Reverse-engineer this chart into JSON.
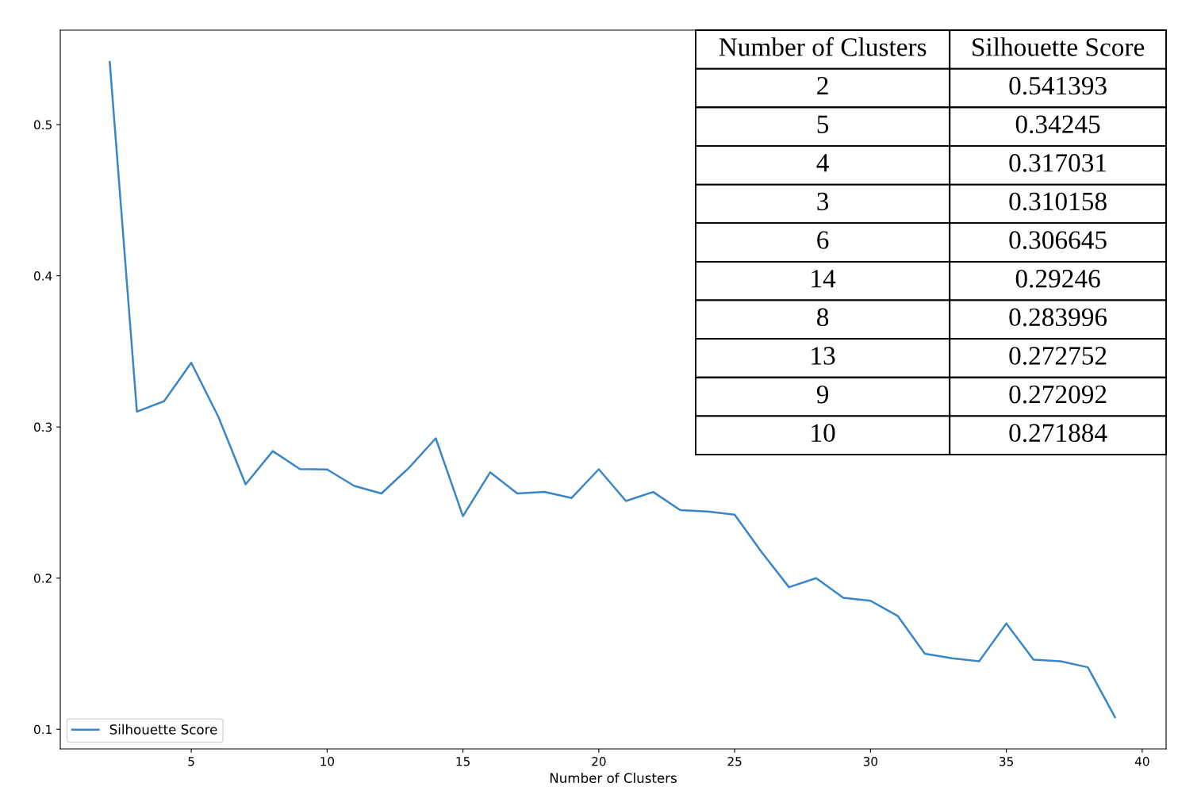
{
  "chart_data": {
    "type": "line",
    "xlabel": "Number of Clusters",
    "x": [
      2,
      3,
      4,
      5,
      6,
      7,
      8,
      9,
      10,
      11,
      12,
      13,
      14,
      15,
      16,
      17,
      18,
      19,
      20,
      21,
      22,
      23,
      24,
      25,
      26,
      27,
      28,
      29,
      30,
      31,
      32,
      33,
      34,
      35,
      36,
      37,
      38,
      39
    ],
    "series": [
      {
        "name": "Silhouette Score",
        "color": "#3a86c8",
        "values": [
          0.541393,
          0.310158,
          0.317031,
          0.34245,
          0.306645,
          0.262,
          0.283996,
          0.272092,
          0.271884,
          0.261,
          0.256,
          0.272752,
          0.29246,
          0.241,
          0.27,
          0.256,
          0.257,
          0.253,
          0.272,
          0.251,
          0.257,
          0.245,
          0.244,
          0.242,
          0.217,
          0.194,
          0.2,
          0.187,
          0.185,
          0.175,
          0.15,
          0.147,
          0.145,
          0.17,
          0.146,
          0.145,
          0.141,
          0.108
        ]
      }
    ],
    "xlim": [
      0.18,
      40.88
    ],
    "ylim": [
      0.087,
      0.5625
    ],
    "xticks": [
      5,
      10,
      15,
      20,
      25,
      30,
      35,
      40
    ],
    "yticks": [
      0.1,
      0.2,
      0.3,
      0.4,
      0.5
    ],
    "legend": "bottom left",
    "grid": false,
    "marker": "none",
    "line_style": "solid",
    "annotations": [
      "Number of Clusters",
      "Silhouette Score",
      "2",
      "0.541393",
      "5",
      "0.34245",
      "4",
      "0.317031",
      "3",
      "0.310158",
      "6",
      "0.306645",
      "14",
      "0.29246",
      "8",
      "0.283996",
      "13",
      "0.272752",
      "9",
      "0.272092",
      "10",
      "0.271884"
    ]
  }
}
